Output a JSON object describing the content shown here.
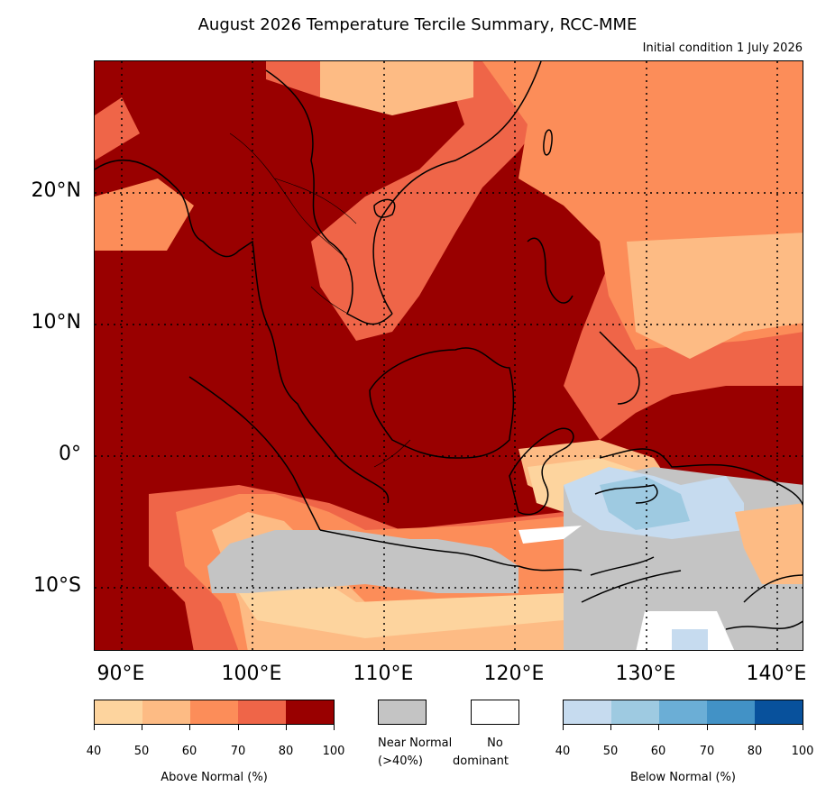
{
  "title": "August 2026 Temperature Tercile Summary, RCC-MME",
  "subtitle": "Initial condition 1 July 2026",
  "map": {
    "lat_labels": [
      "20°N",
      "10°N",
      "0°",
      "10°S"
    ],
    "lon_labels": [
      "90°E",
      "100°E",
      "110°E",
      "120°E",
      "130°E",
      "140°E"
    ]
  },
  "colors": {
    "above": [
      "#fdd49e",
      "#fdbb84",
      "#fc8d59",
      "#ef6548",
      "#990000"
    ],
    "below": [
      "#c6dbef",
      "#9ecae1",
      "#6baed6",
      "#4292c6",
      "#08519c"
    ],
    "near_normal": "#c4c4c4",
    "no_dominant": "#ffffff"
  },
  "legend": {
    "above": {
      "label": "Above Normal (%)",
      "ticks": [
        "40",
        "50",
        "60",
        "70",
        "80",
        "100"
      ]
    },
    "near_normal": {
      "label_line1": "Near Normal",
      "label_line2": "(>40%)"
    },
    "no_dominant": {
      "label_line1": "No",
      "label_line2": "dominant"
    },
    "below": {
      "label": "Below Normal (%)",
      "ticks": [
        "40",
        "50",
        "60",
        "70",
        "80",
        "100"
      ]
    }
  }
}
